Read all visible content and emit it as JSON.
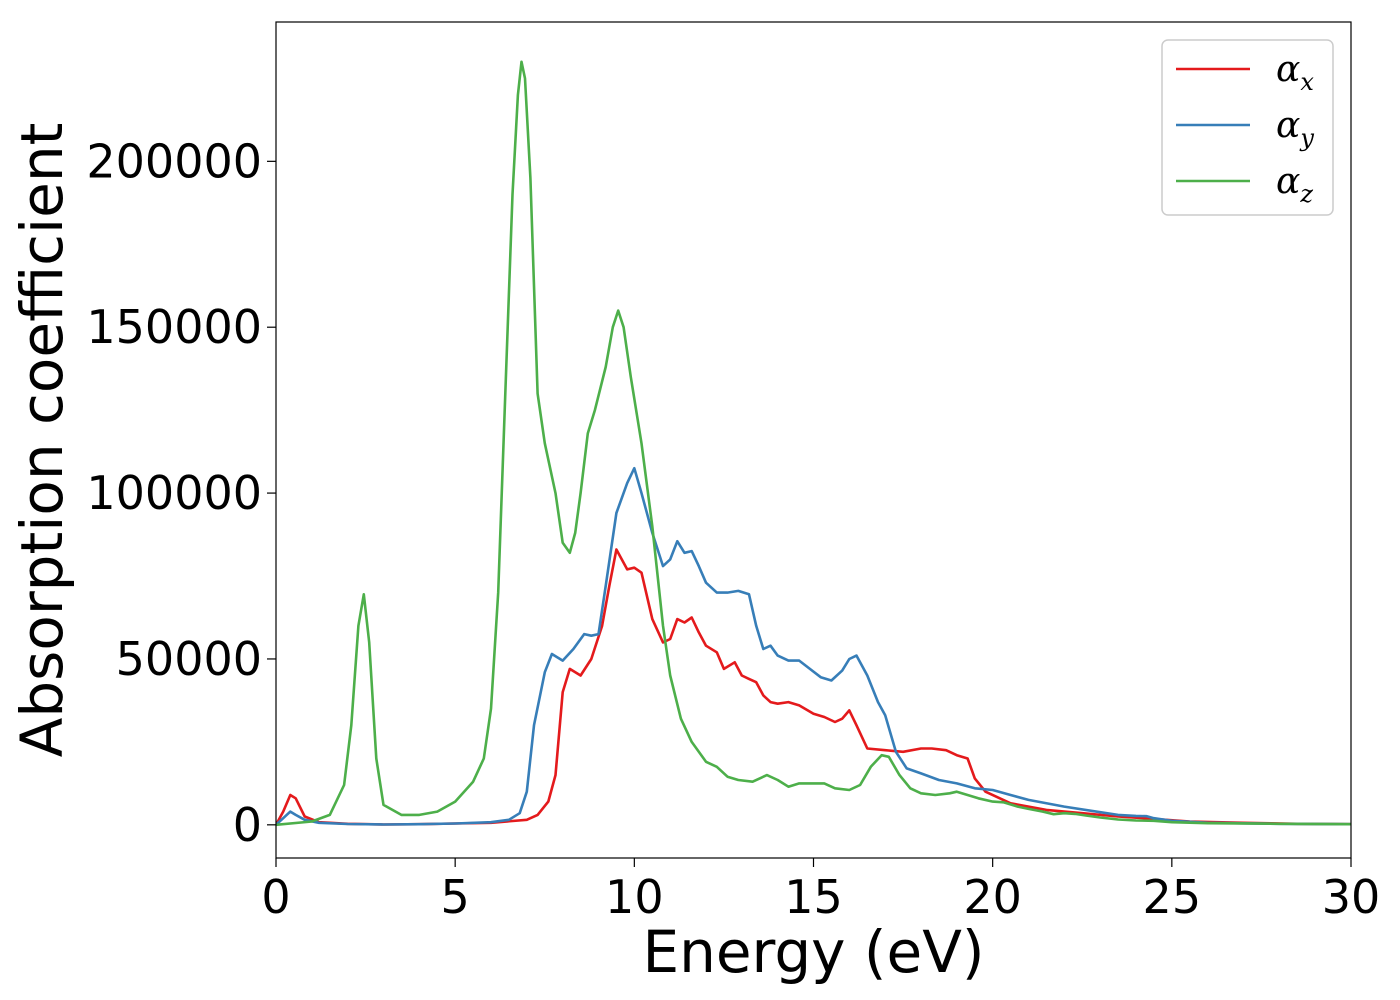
{
  "chart_data": {
    "type": "line",
    "title": "",
    "xlabel": "Energy (eV)",
    "ylabel": "Absorption coefficient",
    "xlim": [
      0,
      30
    ],
    "ylim": [
      -10000,
      242000
    ],
    "xticks": [
      0,
      5,
      10,
      15,
      20,
      25,
      30
    ],
    "xtick_labels": [
      "0",
      "5",
      "10",
      "15",
      "20",
      "25",
      "30"
    ],
    "yticks": [
      0,
      50000,
      100000,
      150000,
      200000
    ],
    "ytick_labels": [
      "0",
      "50000",
      "100000",
      "150000",
      "200000"
    ],
    "grid": false,
    "legend_position": "top-right",
    "series": [
      {
        "name": "α",
        "subscript": "x",
        "color": "#e41a1c",
        "x": [
          0,
          0.2,
          0.4,
          0.55,
          0.8,
          1.2,
          2,
          3,
          4,
          5,
          6,
          7,
          7.3,
          7.6,
          7.8,
          8.0,
          8.2,
          8.5,
          8.8,
          9.1,
          9.3,
          9.5,
          9.8,
          10.0,
          10.2,
          10.5,
          10.8,
          11.0,
          11.2,
          11.4,
          11.6,
          11.8,
          12.0,
          12.3,
          12.5,
          12.8,
          13.0,
          13.2,
          13.4,
          13.6,
          13.8,
          14.0,
          14.3,
          14.6,
          15.0,
          15.3,
          15.6,
          15.8,
          16.0,
          16.2,
          16.5,
          17.0,
          17.5,
          18.0,
          18.3,
          18.7,
          19.0,
          19.3,
          19.5,
          19.8,
          20.5,
          21.5,
          22.5,
          23.5,
          24.5,
          25.5,
          27,
          28.5,
          30
        ],
        "y": [
          0,
          4000,
          9000,
          8000,
          2500,
          800,
          300,
          100,
          200,
          400,
          600,
          1500,
          3000,
          7000,
          15000,
          40000,
          47000,
          45000,
          50000,
          60000,
          72000,
          83000,
          77000,
          77500,
          76000,
          62000,
          55000,
          56000,
          62000,
          61000,
          62500,
          58000,
          54000,
          52000,
          47000,
          49000,
          45000,
          44000,
          43000,
          39000,
          37000,
          36500,
          37000,
          36000,
          33500,
          32500,
          31000,
          32000,
          34500,
          30000,
          23000,
          22500,
          22000,
          23000,
          23000,
          22500,
          21000,
          20000,
          14000,
          10000,
          6500,
          4500,
          3500,
          2500,
          1800,
          1000,
          600,
          300,
          200
        ]
      },
      {
        "name": "α",
        "subscript": "y",
        "color": "#377eb8",
        "x": [
          0,
          0.2,
          0.4,
          0.55,
          0.8,
          1.2,
          2,
          3,
          4,
          5,
          6,
          6.5,
          6.8,
          7.0,
          7.2,
          7.5,
          7.7,
          8.0,
          8.3,
          8.6,
          8.8,
          9.0,
          9.2,
          9.5,
          9.8,
          10.0,
          10.2,
          10.5,
          10.8,
          11.0,
          11.2,
          11.4,
          11.6,
          11.8,
          12.0,
          12.3,
          12.6,
          12.9,
          13.2,
          13.4,
          13.6,
          13.8,
          14.0,
          14.3,
          14.6,
          14.9,
          15.2,
          15.5,
          15.8,
          16.0,
          16.2,
          16.5,
          16.8,
          17.0,
          17.3,
          17.6,
          18.0,
          18.5,
          19.0,
          19.5,
          20.0,
          20.5,
          21.0,
          22.0,
          23.0,
          23.5,
          24.0,
          24.3,
          24.5,
          25.0,
          26,
          28,
          30
        ],
        "y": [
          0,
          2000,
          4000,
          3000,
          1500,
          600,
          250,
          100,
          200,
          400,
          800,
          1500,
          3500,
          10000,
          30000,
          46000,
          51500,
          49500,
          53000,
          57500,
          57000,
          57500,
          72000,
          94000,
          103000,
          107500,
          100000,
          88000,
          78000,
          80000,
          85500,
          82000,
          82500,
          78000,
          73000,
          70000,
          70000,
          70500,
          69500,
          60000,
          53000,
          54000,
          51000,
          49500,
          49500,
          47000,
          44500,
          43500,
          46500,
          50000,
          51000,
          45000,
          37000,
          33000,
          22000,
          17000,
          15500,
          13500,
          12500,
          11000,
          10500,
          9000,
          7500,
          5500,
          3800,
          3000,
          2700,
          2600,
          2000,
          1200,
          600,
          300,
          200
        ]
      },
      {
        "name": "α",
        "subscript": "z",
        "color": "#4daf4a",
        "x": [
          0,
          1.0,
          1.5,
          1.9,
          2.1,
          2.3,
          2.45,
          2.6,
          2.8,
          3.0,
          3.5,
          4.0,
          4.5,
          5.0,
          5.5,
          5.8,
          6.0,
          6.2,
          6.4,
          6.6,
          6.75,
          6.85,
          6.95,
          7.1,
          7.3,
          7.5,
          7.8,
          8.0,
          8.2,
          8.35,
          8.5,
          8.7,
          8.9,
          9.2,
          9.4,
          9.55,
          9.7,
          9.9,
          10.2,
          10.5,
          10.8,
          11.0,
          11.3,
          11.6,
          12.0,
          12.3,
          12.6,
          12.9,
          13.3,
          13.7,
          14.0,
          14.3,
          14.6,
          15.0,
          15.3,
          15.6,
          16.0,
          16.3,
          16.6,
          16.9,
          17.1,
          17.4,
          17.7,
          18.0,
          18.4,
          18.8,
          19.0,
          19.3,
          19.6,
          20.0,
          20.3,
          20.7,
          21.0,
          21.4,
          21.7,
          22.0,
          22.3,
          22.6,
          23.0,
          23.5,
          24.0,
          24.5,
          25,
          26,
          28,
          30
        ],
        "y": [
          0,
          1000,
          3000,
          12000,
          30000,
          60000,
          69500,
          55000,
          20000,
          6000,
          3000,
          3000,
          4000,
          7000,
          13000,
          20000,
          35000,
          70000,
          130000,
          190000,
          220000,
          230000,
          225000,
          195000,
          130000,
          115000,
          100000,
          85000,
          82000,
          88000,
          100000,
          118000,
          125000,
          138000,
          150000,
          155000,
          150000,
          135000,
          115000,
          90000,
          60000,
          45000,
          32000,
          25000,
          19000,
          17500,
          14500,
          13500,
          13000,
          15000,
          13500,
          11500,
          12500,
          12500,
          12500,
          11000,
          10500,
          12000,
          17500,
          21000,
          20500,
          15000,
          11000,
          9500,
          9000,
          9500,
          10000,
          9000,
          8000,
          7000,
          6800,
          5500,
          4800,
          4000,
          3200,
          3500,
          3300,
          2800,
          2200,
          1600,
          1300,
          1200,
          800,
          500,
          300,
          200
        ]
      }
    ]
  }
}
